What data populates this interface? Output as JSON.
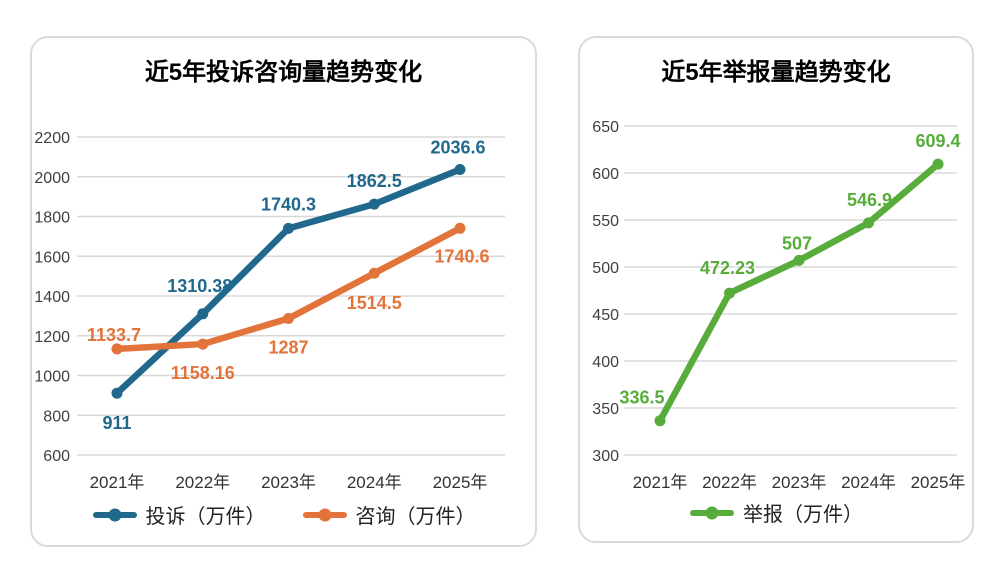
{
  "theme": {
    "background": "#FFFFFF",
    "card_border_color": "#DADADA",
    "grid_color": "#D8D8D8",
    "tick_label_color": "#404040",
    "axis_label_color": "#333333",
    "title_color": "#000000",
    "series_blue": "#20698C",
    "series_orange": "#E2733A",
    "series_green": "#58AC3B"
  },
  "chart_data": [
    {
      "type": "line",
      "title": "近5年投诉咨询量趋势变化",
      "categories": [
        "2021年",
        "2022年",
        "2023年",
        "2024年",
        "2025年"
      ],
      "series": [
        {
          "name": "投诉（万件）",
          "color": "#20698C",
          "values": [
            911,
            1310.38,
            1740.3,
            1862.5,
            2036.6
          ],
          "point_labels": [
            "911",
            "1310.38",
            "1740.3",
            "1862.5",
            "2036.6"
          ]
        },
        {
          "name": "咨询（万件）",
          "color": "#E2733A",
          "values": [
            1133.7,
            1158.16,
            1287,
            1514.5,
            1740.6
          ],
          "point_labels": [
            "1133.7",
            "1158.16",
            "1287",
            "1514.5",
            "1740.6"
          ]
        }
      ],
      "xlabel": "",
      "ylabel": "",
      "ylim": [
        600,
        2200
      ],
      "yticks": [
        600,
        800,
        1000,
        1200,
        1400,
        1600,
        1800,
        2000,
        2200
      ],
      "grid": true,
      "legend_position": "bottom"
    },
    {
      "type": "line",
      "title": "近5年举报量趋势变化",
      "categories": [
        "2021年",
        "2022年",
        "2023年",
        "2024年",
        "2025年"
      ],
      "series": [
        {
          "name": "举报（万件）",
          "color": "#58AC3B",
          "values": [
            336.5,
            472.23,
            507,
            546.9,
            609.4
          ],
          "point_labels": [
            "336.5",
            "472.23",
            "507",
            "546.9",
            "609.4"
          ]
        }
      ],
      "xlabel": "",
      "ylabel": "",
      "ylim": [
        300,
        650
      ],
      "yticks": [
        300,
        350,
        400,
        450,
        500,
        550,
        600,
        650
      ],
      "grid": true,
      "legend_position": "bottom"
    }
  ]
}
